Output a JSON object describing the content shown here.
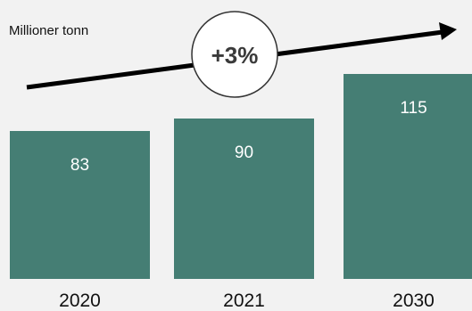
{
  "chart_data": {
    "type": "bar",
    "unit_label": "Millioner tonn",
    "categories": [
      "2020",
      "2021",
      "2030"
    ],
    "values": [
      83,
      90,
      115
    ],
    "value_labels": [
      "83",
      "90",
      "115"
    ],
    "growth_annotation": "+3%",
    "bar_color": "#457e74",
    "arrow_color": "#000000",
    "background_color": "#f2f2f2",
    "grid": false,
    "legend": "none"
  }
}
